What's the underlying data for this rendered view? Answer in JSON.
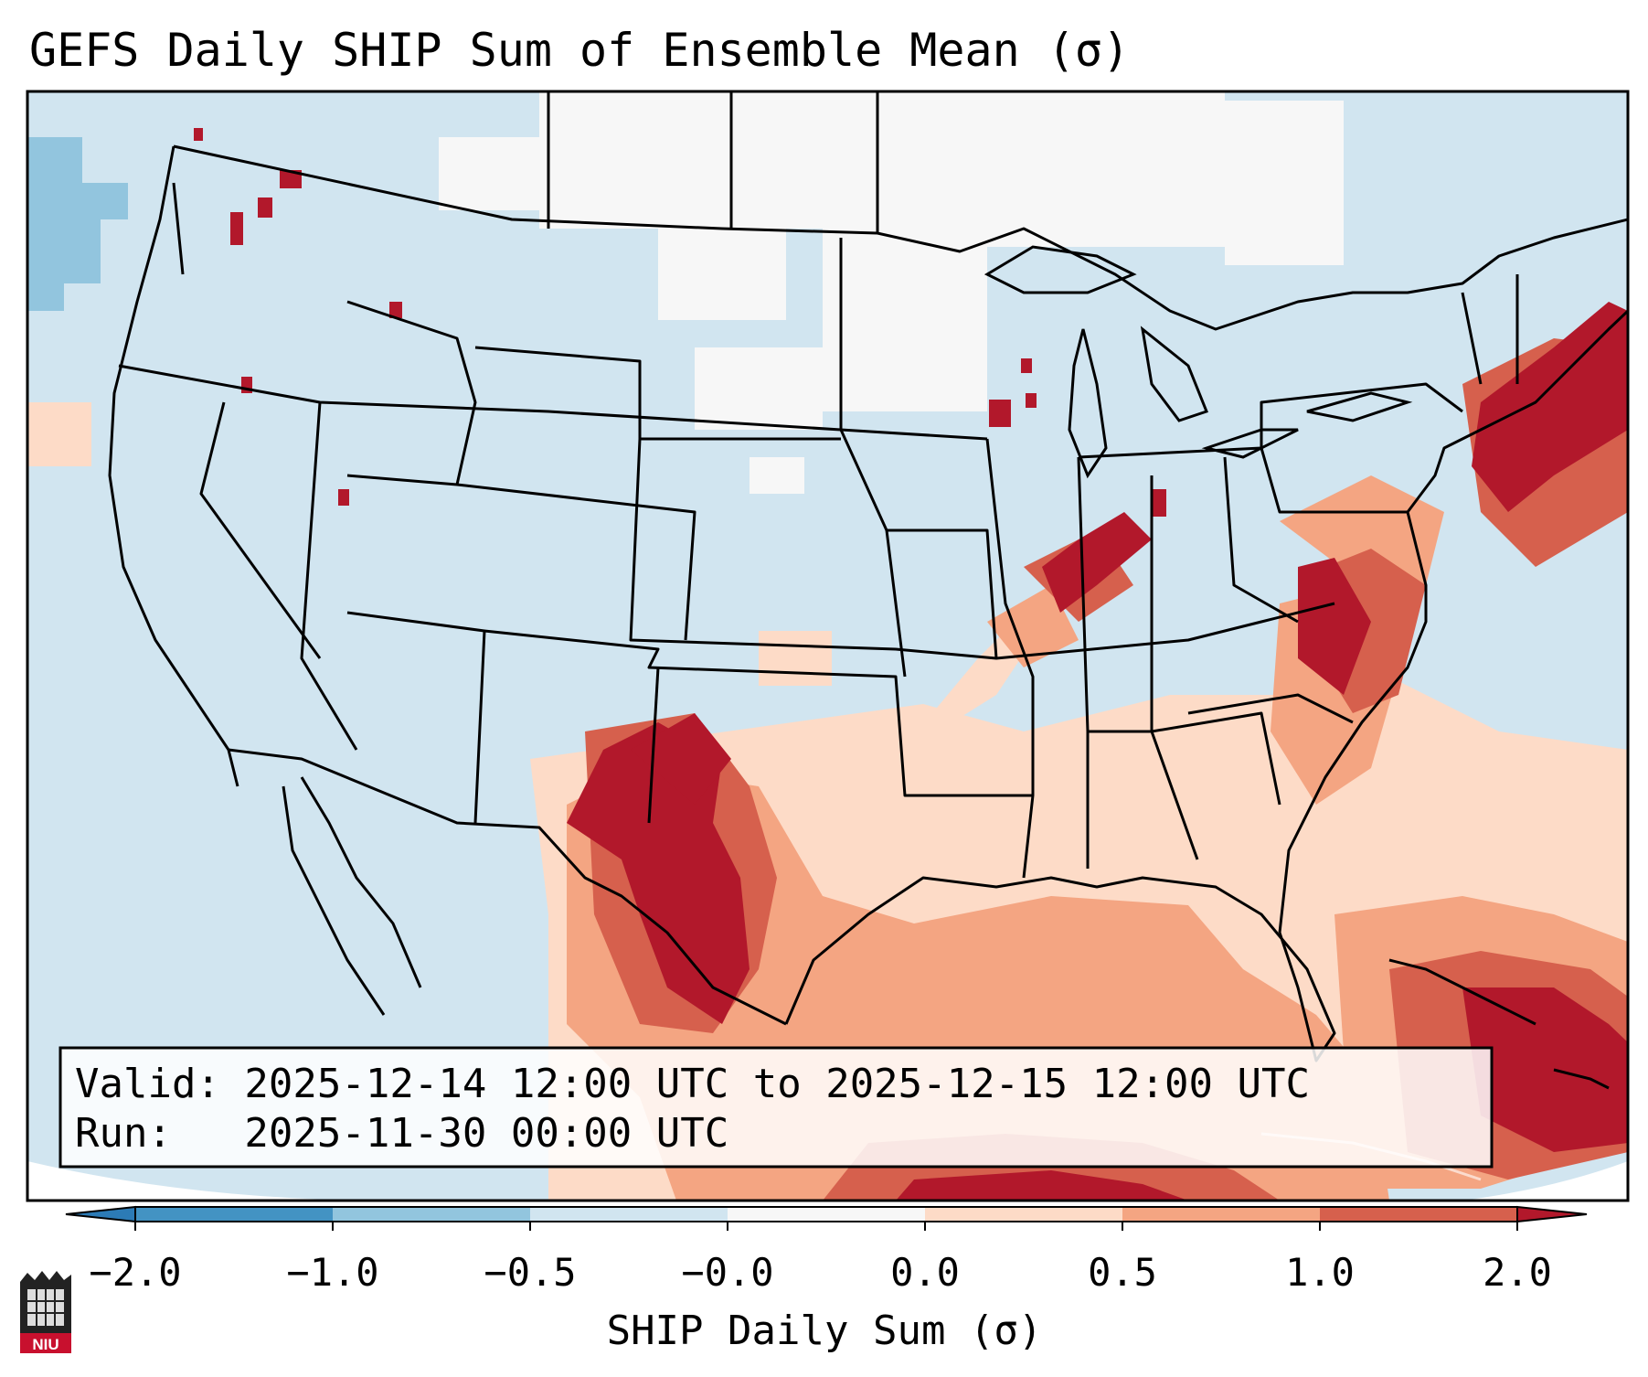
{
  "title": "GEFS Daily SHIP Sum of Ensemble Mean (σ)",
  "info_box": {
    "valid_line": "Valid: 2025-12-14 12:00 UTC to 2025-12-15 12:00 UTC",
    "run_line": "Run:   2025-11-30 00:00 UTC"
  },
  "colorbar": {
    "label": "SHIP Daily Sum (σ)",
    "ticks": [
      "−2.0",
      "−1.0",
      "−0.5",
      "−0.0",
      "0.0",
      "0.5",
      "1.0",
      "2.0"
    ],
    "colors": {
      "under": "#2c7bb6",
      "neg2_neg1": "#4393c3",
      "neg1_neg05": "#92c5de",
      "neg05_0": "#d1e5f0",
      "zero": "#f7f7f7",
      "pos0_05": "#fddbc7",
      "pos05_1": "#f4a582",
      "pos1_2": "#d6604d",
      "over": "#b2182b"
    }
  },
  "logo": {
    "text": "NIU"
  }
}
